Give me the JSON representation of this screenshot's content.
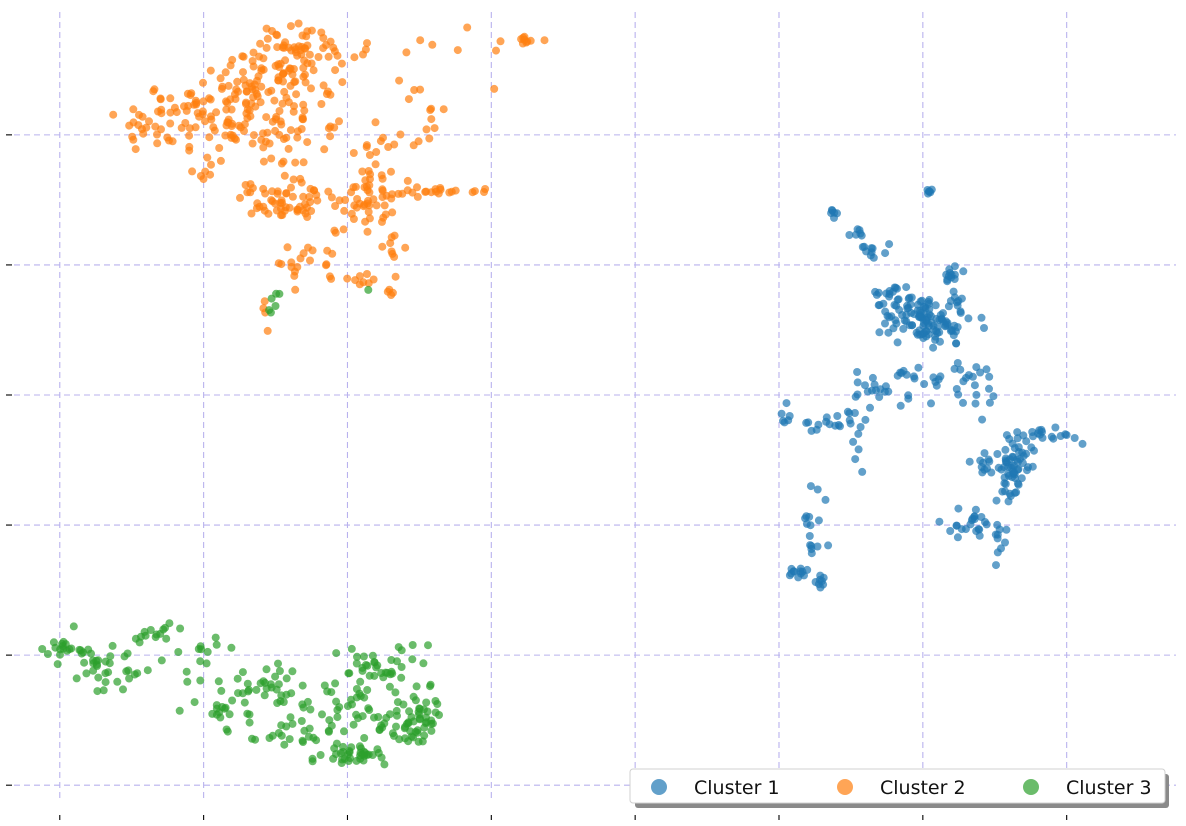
{
  "chart_data": {
    "type": "scatter",
    "title": "",
    "xlabel": "",
    "ylabel": "",
    "x_ticks": [
      -5.0,
      -2.5,
      0.0,
      2.5,
      5.0,
      7.5,
      10.0,
      12.5
    ],
    "y_ticks": [
      0.0,
      2.5,
      5.0,
      7.5,
      10.0,
      12.5
    ],
    "xlim": [
      -5.9,
      14.4
    ],
    "ylim": [
      -0.4,
      14.9
    ],
    "grid": true,
    "tick_labels_visible": false,
    "legend": {
      "placement": "bottom-right",
      "columns": 3
    },
    "series": [
      {
        "name": "Cluster 1",
        "color": "#1f77b4",
        "blobs": [
          {
            "x": 10.1,
            "y": 8.9,
            "sx": 0.38,
            "sy": 0.22,
            "n": 110
          },
          {
            "x": 9.6,
            "y": 9.4,
            "sx": 0.18,
            "sy": 0.12,
            "n": 18
          },
          {
            "x": 10.6,
            "y": 9.3,
            "sx": 0.08,
            "sy": 0.06,
            "n": 6
          },
          {
            "x": 10.5,
            "y": 9.8,
            "sx": 0.08,
            "sy": 0.1,
            "n": 12
          },
          {
            "x": 9.05,
            "y": 10.25,
            "sx": 0.14,
            "sy": 0.08,
            "n": 10
          },
          {
            "x": 8.85,
            "y": 10.6,
            "sx": 0.06,
            "sy": 0.05,
            "n": 6
          },
          {
            "x": 8.45,
            "y": 11.0,
            "sx": 0.05,
            "sy": 0.05,
            "n": 6
          },
          {
            "x": 10.1,
            "y": 11.4,
            "sx": 0.03,
            "sy": 0.03,
            "n": 6
          },
          {
            "x": 10.2,
            "y": 7.8,
            "sx": 0.1,
            "sy": 0.12,
            "n": 8
          },
          {
            "x": 9.7,
            "y": 7.7,
            "sx": 0.1,
            "sy": 0.2,
            "n": 10
          },
          {
            "x": 10.7,
            "y": 8.05,
            "sx": 0.2,
            "sy": 0.14,
            "n": 8
          },
          {
            "x": 9.15,
            "y": 7.6,
            "sx": 0.14,
            "sy": 0.12,
            "n": 12
          },
          {
            "x": 8.85,
            "y": 6.9,
            "sx": 0.1,
            "sy": 0.45,
            "n": 14
          },
          {
            "x": 8.3,
            "y": 7.0,
            "sx": 0.26,
            "sy": 0.1,
            "n": 14
          },
          {
            "x": 7.65,
            "y": 7.15,
            "sx": 0.05,
            "sy": 0.18,
            "n": 6
          },
          {
            "x": 8.1,
            "y": 5.2,
            "sx": 0.1,
            "sy": 0.35,
            "n": 10
          },
          {
            "x": 8.05,
            "y": 4.6,
            "sx": 0.06,
            "sy": 0.1,
            "n": 6
          },
          {
            "x": 7.8,
            "y": 4.1,
            "sx": 0.14,
            "sy": 0.06,
            "n": 12
          },
          {
            "x": 8.25,
            "y": 3.9,
            "sx": 0.05,
            "sy": 0.08,
            "n": 8
          },
          {
            "x": 11.5,
            "y": 6.25,
            "sx": 0.22,
            "sy": 0.22,
            "n": 50
          },
          {
            "x": 12.15,
            "y": 6.75,
            "sx": 0.25,
            "sy": 0.08,
            "n": 18
          },
          {
            "x": 11.0,
            "y": 6.1,
            "sx": 0.08,
            "sy": 0.1,
            "n": 6
          },
          {
            "x": 11.45,
            "y": 5.8,
            "sx": 0.18,
            "sy": 0.22,
            "n": 16
          },
          {
            "x": 10.9,
            "y": 5.1,
            "sx": 0.18,
            "sy": 0.14,
            "n": 14
          },
          {
            "x": 10.6,
            "y": 4.95,
            "sx": 0.12,
            "sy": 0.05,
            "n": 8
          },
          {
            "x": 11.3,
            "y": 4.7,
            "sx": 0.06,
            "sy": 0.2,
            "n": 10
          },
          {
            "x": 11.0,
            "y": 7.5,
            "sx": 0.3,
            "sy": 0.25,
            "n": 12
          }
        ]
      },
      {
        "name": "Cluster 2",
        "color": "#ff7f0e",
        "blobs": [
          {
            "x": -1.3,
            "y": 13.3,
            "sx": 0.55,
            "sy": 0.55,
            "n": 130
          },
          {
            "x": -1.0,
            "y": 14.1,
            "sx": 0.3,
            "sy": 0.22,
            "n": 40
          },
          {
            "x": -2.2,
            "y": 13.1,
            "sx": 0.35,
            "sy": 0.35,
            "n": 40
          },
          {
            "x": -3.2,
            "y": 12.7,
            "sx": 0.4,
            "sy": 0.3,
            "n": 40
          },
          {
            "x": -2.5,
            "y": 12.0,
            "sx": 0.3,
            "sy": 0.3,
            "n": 12
          },
          {
            "x": -1.0,
            "y": 12.0,
            "sx": 0.35,
            "sy": 0.2,
            "n": 12
          },
          {
            "x": -0.9,
            "y": 11.2,
            "sx": 0.35,
            "sy": 0.2,
            "n": 40
          },
          {
            "x": 0.3,
            "y": 11.2,
            "sx": 0.4,
            "sy": 0.25,
            "n": 40
          },
          {
            "x": -1.6,
            "y": 11.3,
            "sx": 0.2,
            "sy": 0.3,
            "n": 15
          },
          {
            "x": 0.5,
            "y": 12.0,
            "sx": 0.2,
            "sy": 0.35,
            "n": 18
          },
          {
            "x": 1.2,
            "y": 12.7,
            "sx": 0.22,
            "sy": 0.3,
            "n": 12
          },
          {
            "x": 1.4,
            "y": 11.4,
            "sx": 0.4,
            "sy": 0.06,
            "n": 22
          },
          {
            "x": 0.8,
            "y": 10.3,
            "sx": 0.1,
            "sy": 0.3,
            "n": 10
          },
          {
            "x": 0.1,
            "y": 9.7,
            "sx": 0.25,
            "sy": 0.08,
            "n": 10
          },
          {
            "x": 0.7,
            "y": 9.5,
            "sx": 0.06,
            "sy": 0.08,
            "n": 4
          },
          {
            "x": -0.9,
            "y": 10.1,
            "sx": 0.18,
            "sy": 0.25,
            "n": 14
          },
          {
            "x": -0.3,
            "y": 10.3,
            "sx": 0.2,
            "sy": 0.2,
            "n": 6
          },
          {
            "x": 1.8,
            "y": 13.9,
            "sx": 0.7,
            "sy": 0.45,
            "n": 10
          },
          {
            "x": 3.1,
            "y": 14.3,
            "sx": 0.12,
            "sy": 0.05,
            "n": 10
          },
          {
            "x": 0.1,
            "y": 14.2,
            "sx": 0.3,
            "sy": 0.25,
            "n": 10
          },
          {
            "x": -1.4,
            "y": 9.2,
            "sx": 0.08,
            "sy": 0.18,
            "n": 4
          }
        ]
      },
      {
        "name": "Cluster 3",
        "color": "#2ca02c",
        "blobs": [
          {
            "x": -5.0,
            "y": 2.6,
            "sx": 0.15,
            "sy": 0.12,
            "n": 14
          },
          {
            "x": -4.4,
            "y": 2.55,
            "sx": 0.28,
            "sy": 0.15,
            "n": 20
          },
          {
            "x": -4.0,
            "y": 2.1,
            "sx": 0.3,
            "sy": 0.15,
            "n": 18
          },
          {
            "x": -3.2,
            "y": 2.95,
            "sx": 0.25,
            "sy": 0.1,
            "n": 14
          },
          {
            "x": -2.6,
            "y": 2.5,
            "sx": 0.3,
            "sy": 0.2,
            "n": 14
          },
          {
            "x": -2.2,
            "y": 1.5,
            "sx": 0.3,
            "sy": 0.25,
            "n": 22
          },
          {
            "x": -1.3,
            "y": 1.9,
            "sx": 0.35,
            "sy": 0.2,
            "n": 25
          },
          {
            "x": -0.1,
            "y": 1.5,
            "sx": 0.45,
            "sy": 0.35,
            "n": 40
          },
          {
            "x": 0.8,
            "y": 1.5,
            "sx": 0.45,
            "sy": 0.35,
            "n": 25
          },
          {
            "x": 0.6,
            "y": 2.3,
            "sx": 0.35,
            "sy": 0.2,
            "n": 30
          },
          {
            "x": 1.2,
            "y": 1.4,
            "sx": 0.2,
            "sy": 0.3,
            "n": 30
          },
          {
            "x": 0.0,
            "y": 0.6,
            "sx": 0.35,
            "sy": 0.12,
            "n": 35
          },
          {
            "x": -1.0,
            "y": 0.9,
            "sx": 0.3,
            "sy": 0.15,
            "n": 20
          },
          {
            "x": 0.7,
            "y": 0.9,
            "sx": 0.3,
            "sy": 0.15,
            "n": 15
          },
          {
            "x": -1.35,
            "y": 9.1,
            "sx": 0.05,
            "sy": 0.1,
            "n": 4
          },
          {
            "x": -1.2,
            "y": 9.5,
            "sx": 0.04,
            "sy": 0.04,
            "n": 2
          },
          {
            "x": 0.4,
            "y": 9.5,
            "sx": 0.04,
            "sy": 0.04,
            "n": 1
          }
        ]
      }
    ]
  }
}
